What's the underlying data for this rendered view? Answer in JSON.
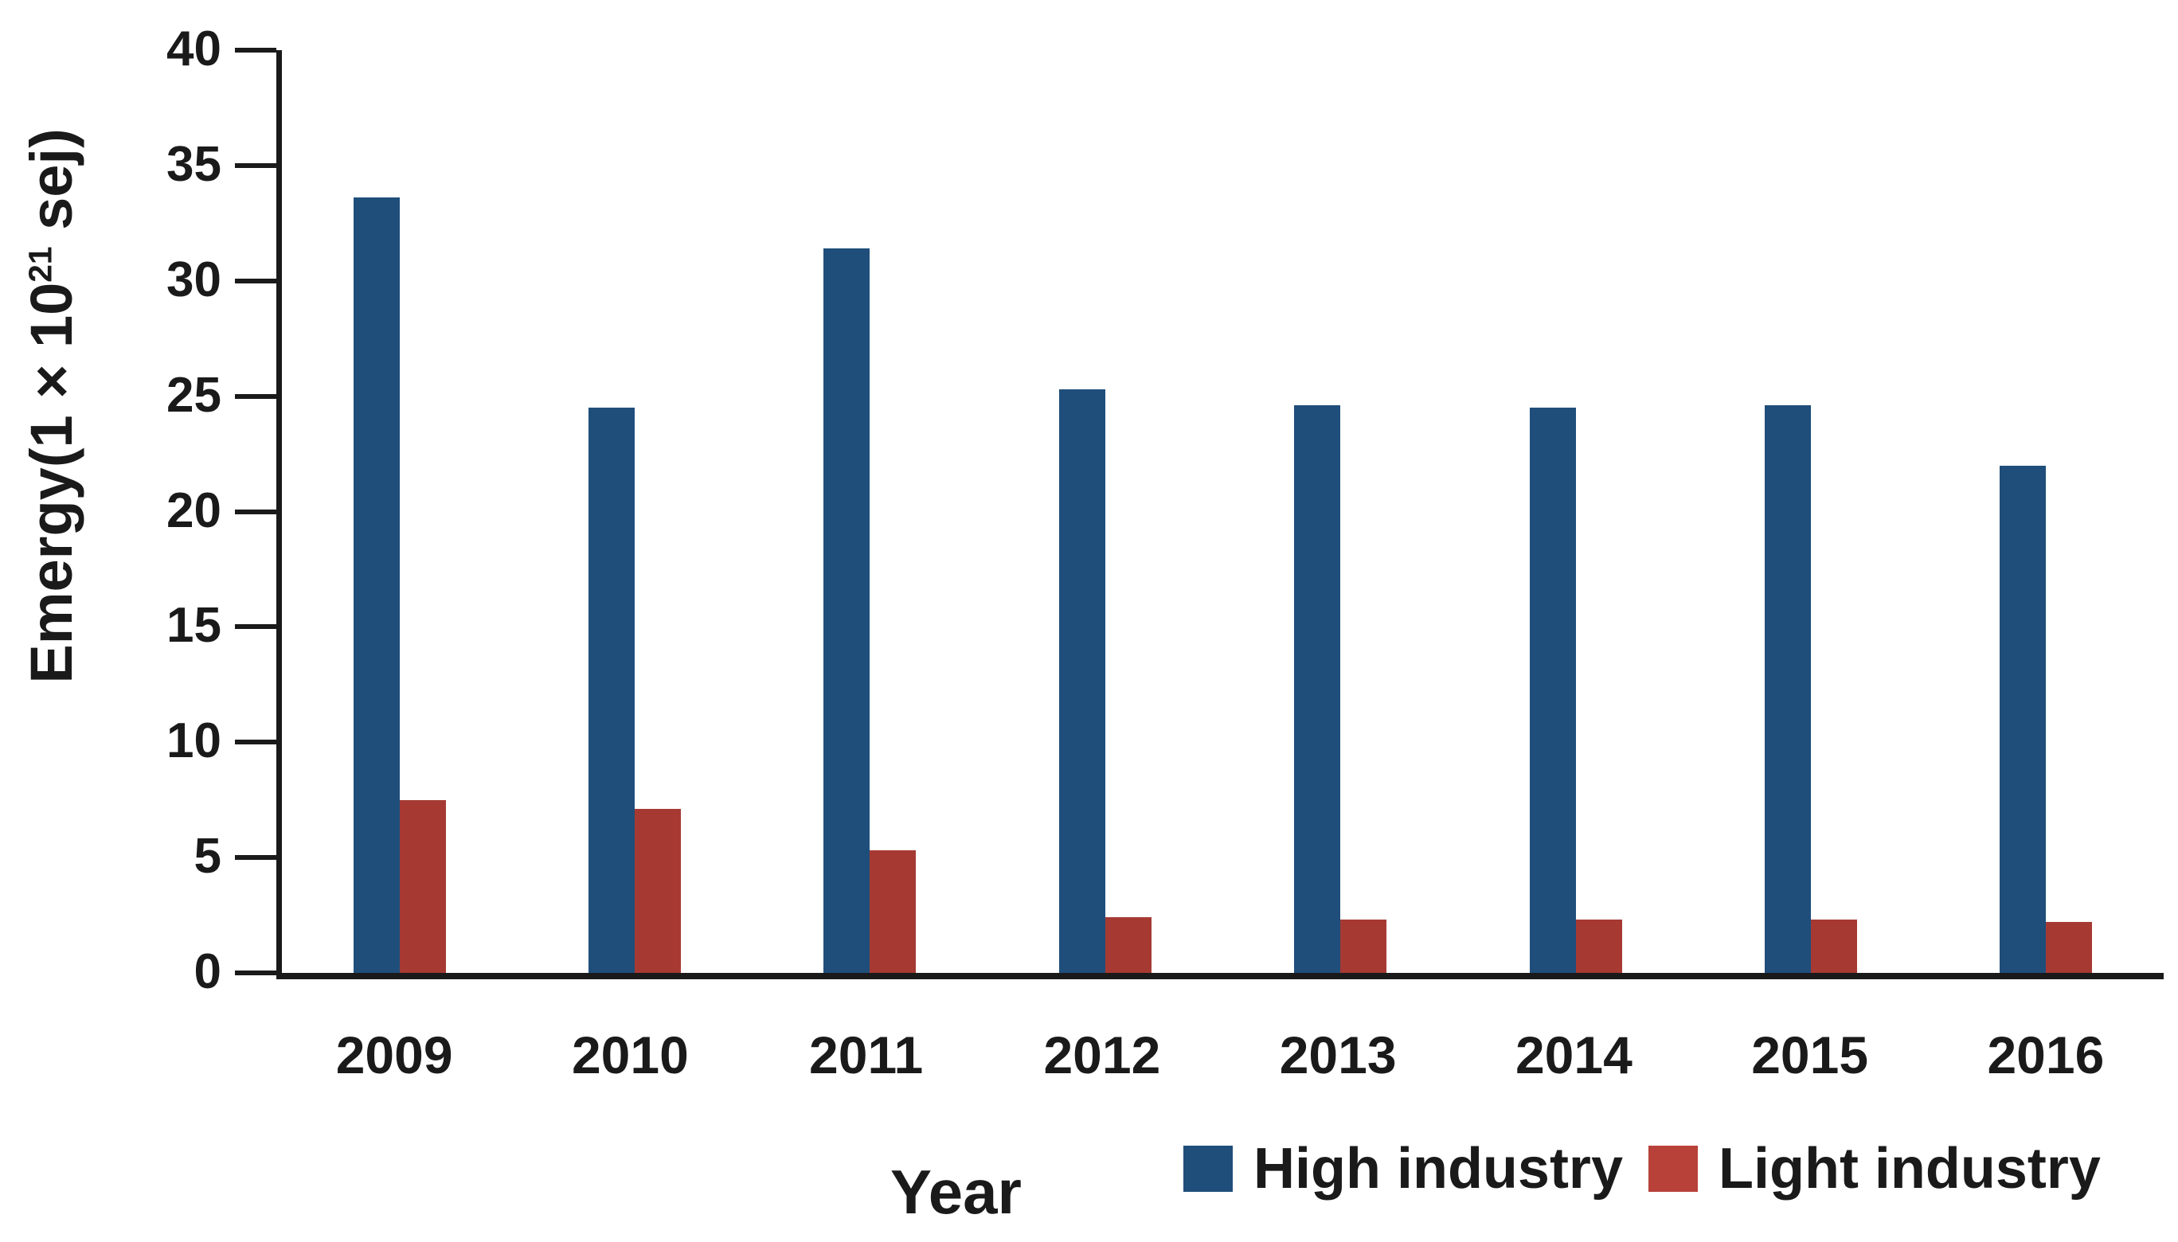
{
  "figure": {
    "background": "#ffffff",
    "axis_color": "#1a1a1a",
    "text_color": "#1a1a1a"
  },
  "chart_data": {
    "type": "bar",
    "title": "",
    "categories": [
      "2009",
      "2010",
      "2011",
      "2012",
      "2013",
      "2014",
      "2015",
      "2016"
    ],
    "series": [
      {
        "name": "High industry",
        "color": "#1f4e7b",
        "values": [
          33.6,
          24.5,
          31.4,
          25.3,
          24.6,
          24.5,
          24.6,
          22.0
        ]
      },
      {
        "name": "Light industry",
        "color": "#a63a33",
        "values": [
          7.5,
          7.1,
          5.3,
          2.4,
          2.3,
          2.3,
          2.3,
          2.2
        ]
      }
    ],
    "xlabel": "Year",
    "ylabel": "Emergy(1 × 10²¹ sej)",
    "ylabel_parts": {
      "prefix": "Emergy(1 × 10",
      "superscript": "21",
      "suffix": " sej)"
    },
    "ylim": [
      0,
      40
    ],
    "yticks": [
      0,
      5,
      10,
      15,
      20,
      25,
      30,
      35,
      40
    ],
    "grid": false,
    "legend_position": "bottom-right"
  },
  "legend": {
    "items": [
      {
        "label": "High industry",
        "color": "#1f4e7b"
      },
      {
        "label": "Light industry",
        "color": "#b8423a"
      }
    ]
  }
}
